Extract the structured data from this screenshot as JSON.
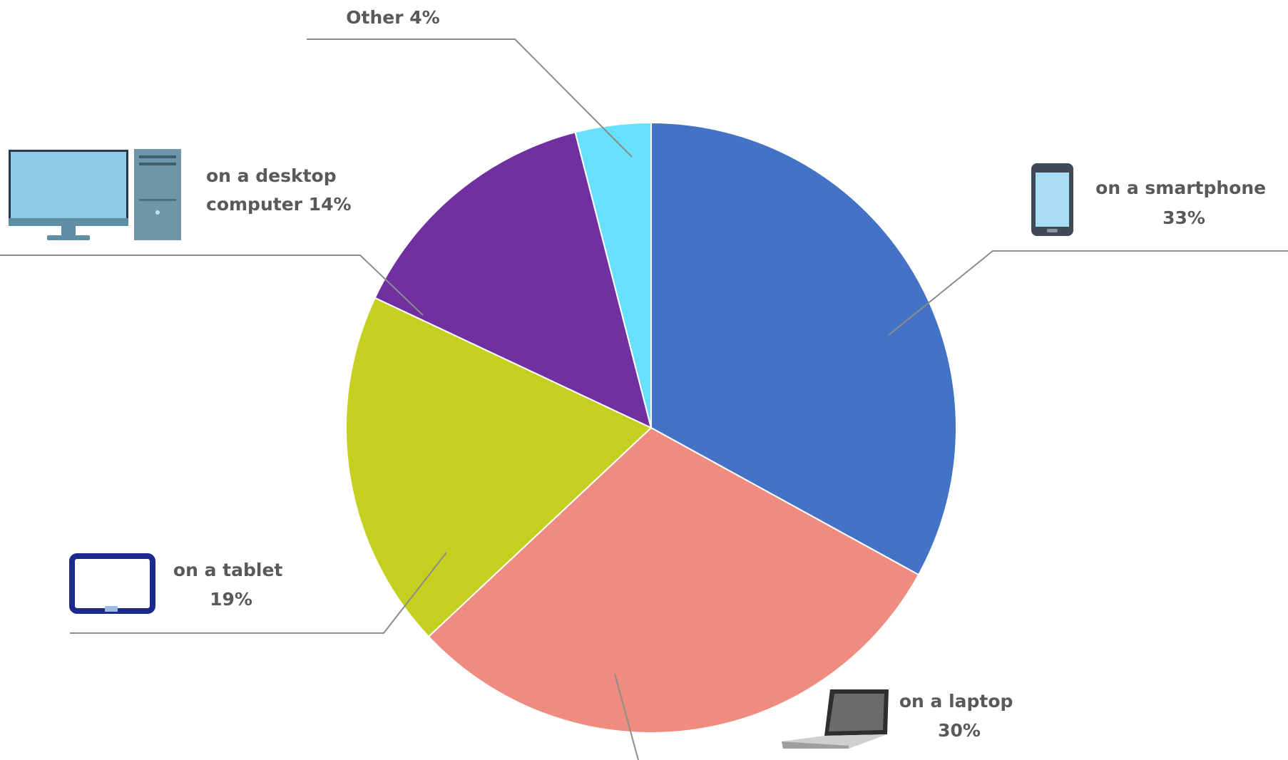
{
  "chart_data": {
    "type": "pie",
    "title": "",
    "start_angle_deg": 0,
    "direction": "clockwise",
    "slices": [
      {
        "label_lines": [
          "on a smartphone",
          "33%"
        ],
        "value": 33,
        "color": "#4472c4",
        "icon": "smartphone-icon"
      },
      {
        "label_lines": [
          "on a laptop",
          "30%"
        ],
        "value": 30,
        "color": "#f08b80",
        "icon": "laptop-icon"
      },
      {
        "label_lines": [
          "on a tablet",
          "19%"
        ],
        "value": 19,
        "color": "#c5cf1f",
        "icon": "tablet-icon"
      },
      {
        "label_lines": [
          "on a desktop",
          "computer 14%"
        ],
        "value": 14,
        "color": "#7030a0",
        "icon": "desktop-computer-icon"
      },
      {
        "label_lines": [
          "Other 4%"
        ],
        "value": 4,
        "color": "#66e0fc",
        "icon": ""
      }
    ]
  }
}
